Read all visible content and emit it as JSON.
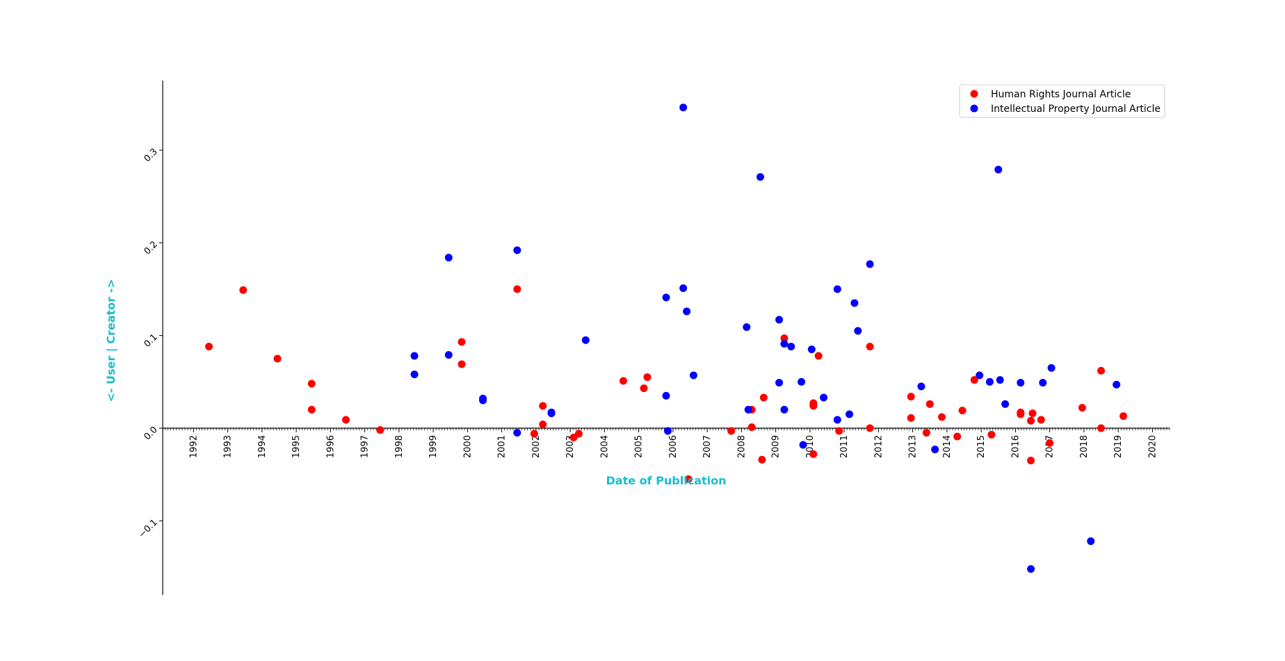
{
  "chart_data": {
    "type": "scatter",
    "title": "",
    "xlabel": "Date of Publication",
    "ylabel": "<- User | Creator ->",
    "label_color": "#17becf",
    "xlim": [
      1991.1,
      2020.5
    ],
    "ylim": [
      -0.18,
      0.375
    ],
    "x_ticks": [
      1992,
      1993,
      1994,
      1995,
      1996,
      1997,
      1998,
      1999,
      2000,
      2001,
      2002,
      2003,
      2004,
      2005,
      2006,
      2007,
      2008,
      2009,
      2010,
      2011,
      2012,
      2013,
      2014,
      2015,
      2016,
      2017,
      2018,
      2019,
      2020
    ],
    "y_ticks": [
      -0.1,
      0.0,
      0.1,
      0.2,
      0.3
    ],
    "y_tick_labels": [
      "−0.1",
      "0.0",
      "0.1",
      "0.2",
      "0.3"
    ],
    "legend_position": "top-right",
    "grid": false,
    "series": [
      {
        "name": "Human Rights Journal Article",
        "color": "#ff0000",
        "points": [
          [
            1992.45,
            0.088
          ],
          [
            1993.45,
            0.149
          ],
          [
            1994.45,
            0.075
          ],
          [
            1995.45,
            0.048
          ],
          [
            1995.45,
            0.02
          ],
          [
            1996.45,
            0.009
          ],
          [
            1997.45,
            -0.002
          ],
          [
            1999.83,
            0.093
          ],
          [
            1999.83,
            0.069
          ],
          [
            2001.45,
            0.15
          ],
          [
            2001.95,
            -0.006
          ],
          [
            2002.2,
            0.024
          ],
          [
            2002.2,
            0.004
          ],
          [
            2003.1,
            -0.01
          ],
          [
            2003.25,
            -0.006
          ],
          [
            2004.55,
            0.051
          ],
          [
            2005.15,
            0.043
          ],
          [
            2005.25,
            0.055
          ],
          [
            2006.45,
            -0.055
          ],
          [
            2007.7,
            -0.003
          ],
          [
            2008.3,
            0.02
          ],
          [
            2008.3,
            0.001
          ],
          [
            2008.65,
            0.033
          ],
          [
            2008.6,
            -0.034
          ],
          [
            2009.25,
            0.097
          ],
          [
            2010.1,
            0.027
          ],
          [
            2010.1,
            0.024
          ],
          [
            2010.25,
            0.078
          ],
          [
            2010.1,
            -0.028
          ],
          [
            2010.85,
            -0.003
          ],
          [
            2011.75,
            0.088
          ],
          [
            2011.75,
            0.0
          ],
          [
            2012.95,
            0.034
          ],
          [
            2012.95,
            0.011
          ],
          [
            2013.4,
            -0.005
          ],
          [
            2013.5,
            0.026
          ],
          [
            2013.85,
            0.012
          ],
          [
            2014.3,
            -0.009
          ],
          [
            2014.45,
            0.019
          ],
          [
            2014.8,
            0.052
          ],
          [
            2015.3,
            -0.007
          ],
          [
            2016.15,
            0.017
          ],
          [
            2016.15,
            0.015
          ],
          [
            2016.45,
            0.008
          ],
          [
            2016.5,
            0.016
          ],
          [
            2016.45,
            -0.035
          ],
          [
            2016.75,
            0.009
          ],
          [
            2017.0,
            -0.016
          ],
          [
            2017.95,
            0.022
          ],
          [
            2018.5,
            0.062
          ],
          [
            2018.5,
            0.0
          ],
          [
            2019.15,
            0.013
          ]
        ]
      },
      {
        "name": "Intellectual Property Journal Article",
        "color": "#0000ff",
        "points": [
          [
            1998.45,
            0.078
          ],
          [
            1998.45,
            0.058
          ],
          [
            1999.45,
            0.184
          ],
          [
            1999.45,
            0.079
          ],
          [
            2000.45,
            0.032
          ],
          [
            2000.45,
            0.03
          ],
          [
            2001.45,
            0.192
          ],
          [
            2001.45,
            -0.005
          ],
          [
            2002.45,
            0.017
          ],
          [
            2002.45,
            0.016
          ],
          [
            2003.45,
            0.095
          ],
          [
            2005.8,
            0.141
          ],
          [
            2005.8,
            0.035
          ],
          [
            2005.85,
            -0.003
          ],
          [
            2006.3,
            0.346
          ],
          [
            2006.3,
            0.151
          ],
          [
            2006.4,
            0.126
          ],
          [
            2006.6,
            0.057
          ],
          [
            2008.15,
            0.109
          ],
          [
            2008.2,
            0.02
          ],
          [
            2008.55,
            0.271
          ],
          [
            2009.1,
            0.117
          ],
          [
            2009.1,
            0.049
          ],
          [
            2009.25,
            0.091
          ],
          [
            2009.25,
            0.02
          ],
          [
            2009.45,
            0.088
          ],
          [
            2009.75,
            0.05
          ],
          [
            2009.8,
            -0.018
          ],
          [
            2010.05,
            0.085
          ],
          [
            2010.4,
            0.033
          ],
          [
            2010.8,
            0.15
          ],
          [
            2010.8,
            0.009
          ],
          [
            2011.15,
            0.015
          ],
          [
            2011.3,
            0.135
          ],
          [
            2011.4,
            0.105
          ],
          [
            2011.75,
            0.177
          ],
          [
            2013.25,
            0.045
          ],
          [
            2013.65,
            -0.023
          ],
          [
            2014.95,
            0.057
          ],
          [
            2015.25,
            0.05
          ],
          [
            2015.5,
            0.279
          ],
          [
            2015.55,
            0.052
          ],
          [
            2015.7,
            0.026
          ],
          [
            2016.15,
            0.049
          ],
          [
            2016.45,
            -0.152
          ],
          [
            2016.8,
            0.049
          ],
          [
            2017.05,
            0.065
          ],
          [
            2018.2,
            -0.122
          ],
          [
            2018.95,
            0.047
          ]
        ]
      }
    ]
  }
}
